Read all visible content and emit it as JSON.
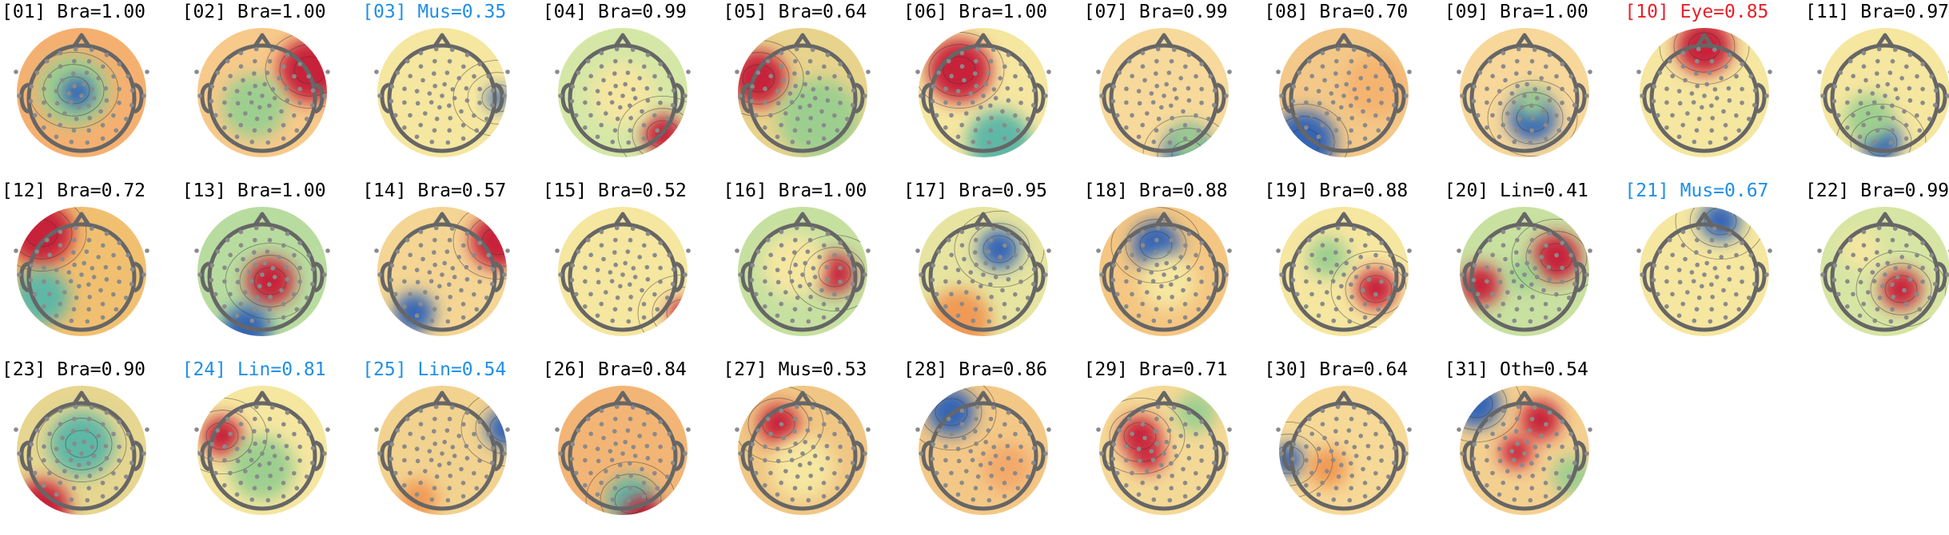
{
  "label_colors": {
    "default": "#000000",
    "blue": "#1f8fe6",
    "red": "#e8212b"
  },
  "colormap": "RdYlBu_r / Spectral_r",
  "components": [
    {
      "title": "[01] Bra=1.00",
      "label_color": "default"
    },
    {
      "title": "[02] Bra=1.00",
      "label_color": "default"
    },
    {
      "title": "[03] Mus=0.35",
      "label_color": "blue"
    },
    {
      "title": "[04] Bra=0.99",
      "label_color": "default"
    },
    {
      "title": "[05] Bra=0.64",
      "label_color": "default"
    },
    {
      "title": "[06] Bra=1.00",
      "label_color": "default"
    },
    {
      "title": "[07] Bra=0.99",
      "label_color": "default"
    },
    {
      "title": "[08] Bra=0.70",
      "label_color": "default"
    },
    {
      "title": "[09] Bra=1.00",
      "label_color": "default"
    },
    {
      "title": "[10] Eye=0.85",
      "label_color": "red"
    },
    {
      "title": "[11] Bra=0.97",
      "label_color": "default"
    },
    {
      "title": "[12] Bra=0.72",
      "label_color": "default"
    },
    {
      "title": "[13] Bra=1.00",
      "label_color": "default"
    },
    {
      "title": "[14] Bra=0.57",
      "label_color": "default"
    },
    {
      "title": "[15] Bra=0.52",
      "label_color": "default"
    },
    {
      "title": "[16] Bra=1.00",
      "label_color": "default"
    },
    {
      "title": "[17] Bra=0.95",
      "label_color": "default"
    },
    {
      "title": "[18] Bra=0.88",
      "label_color": "default"
    },
    {
      "title": "[19] Bra=0.88",
      "label_color": "default"
    },
    {
      "title": "[20] Lin=0.41",
      "label_color": "default"
    },
    {
      "title": "[21] Mus=0.67",
      "label_color": "blue"
    },
    {
      "title": "[22] Bra=0.99",
      "label_color": "default"
    },
    {
      "title": "[23] Bra=0.90",
      "label_color": "default"
    },
    {
      "title": "[24] Lin=0.81",
      "label_color": "blue"
    },
    {
      "title": "[25] Lin=0.54",
      "label_color": "blue"
    },
    {
      "title": "[26] Bra=0.84",
      "label_color": "default"
    },
    {
      "title": "[27] Mus=0.53",
      "label_color": "default"
    },
    {
      "title": "[28] Bra=0.86",
      "label_color": "default"
    },
    {
      "title": "[29] Bra=0.71",
      "label_color": "default"
    },
    {
      "title": "[30] Bra=0.64",
      "label_color": "default"
    },
    {
      "title": "[31] Oth=0.54",
      "label_color": "default"
    }
  ]
}
